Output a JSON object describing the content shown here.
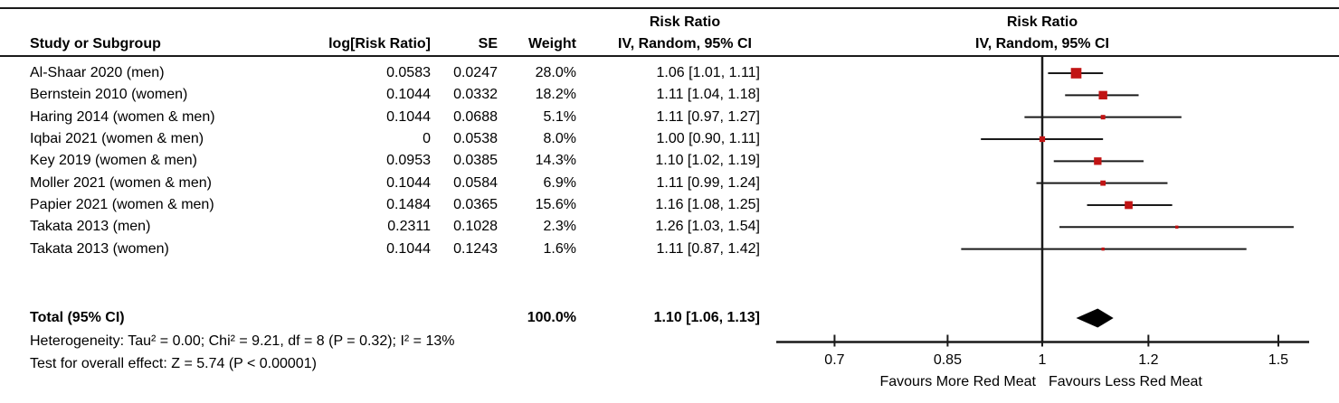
{
  "header": {
    "study_col": "Study or Subgroup",
    "log_rr_col": "log[Risk Ratio]",
    "se_col": "SE",
    "weight_col": "Weight",
    "left_measure_title": "Risk Ratio",
    "left_model_subtitle": "IV, Random, 95% CI",
    "right_measure_title": "Risk Ratio",
    "right_model_subtitle": "IV, Random, 95% CI"
  },
  "total_row": {
    "label": "Total (95% CI)",
    "weight": "100.0%",
    "ci_text": "1.10 [1.06, 1.13]"
  },
  "footnotes": {
    "heterogeneity": "Heterogeneity: Tau² = 0.00; Chi² = 9.21, df = 8 (P = 0.32); I² = 13%",
    "overall_effect": "Test for overall effect: Z = 5.74 (P < 0.00001)"
  },
  "colors": {
    "marker_red": "#c11414",
    "diamond_black": "#000000",
    "line": "#1a1a1a"
  },
  "chart_data": {
    "type": "forest",
    "effect_measure": "Risk Ratio",
    "model": "IV, Random, 95% CI",
    "x_scale": "log",
    "null_line": 1,
    "x_ticks": [
      "0.7",
      "0.85",
      "1",
      "1.2",
      "1.5"
    ],
    "x_tick_values": [
      0.7,
      0.85,
      1,
      1.2,
      1.5
    ],
    "favours_left": "Favours More Red Meat",
    "favours_right": "Favours Less Red Meat",
    "studies": [
      {
        "label": "Al-Shaar 2020 (men)",
        "log_rr": "0.0583",
        "se": "0.0247",
        "weight": "28.0%",
        "weight_pct": 28.0,
        "ci_text": "1.06 [1.01, 1.11]",
        "rr": 1.06,
        "ci_low": 1.01,
        "ci_high": 1.11
      },
      {
        "label": "Bernstein 2010 (women)",
        "log_rr": "0.1044",
        "se": "0.0332",
        "weight": "18.2%",
        "weight_pct": 18.2,
        "ci_text": "1.11 [1.04, 1.18]",
        "rr": 1.11,
        "ci_low": 1.04,
        "ci_high": 1.18
      },
      {
        "label": "Haring 2014 (women & men)",
        "log_rr": "0.1044",
        "se": "0.0688",
        "weight": "5.1%",
        "weight_pct": 5.1,
        "ci_text": "1.11 [0.97, 1.27]",
        "rr": 1.11,
        "ci_low": 0.97,
        "ci_high": 1.27
      },
      {
        "label": "Iqbai 2021 (women & men)",
        "log_rr": "0",
        "se": "0.0538",
        "weight": "8.0%",
        "weight_pct": 8.0,
        "ci_text": "1.00 [0.90, 1.11]",
        "rr": 1.0,
        "ci_low": 0.9,
        "ci_high": 1.11
      },
      {
        "label": "Key 2019 (women & men)",
        "log_rr": "0.0953",
        "se": "0.0385",
        "weight": "14.3%",
        "weight_pct": 14.3,
        "ci_text": "1.10 [1.02, 1.19]",
        "rr": 1.1,
        "ci_low": 1.02,
        "ci_high": 1.19
      },
      {
        "label": "Moller 2021 (women & men)",
        "log_rr": "0.1044",
        "se": "0.0584",
        "weight": "6.9%",
        "weight_pct": 6.9,
        "ci_text": "1.11 [0.99, 1.24]",
        "rr": 1.11,
        "ci_low": 0.99,
        "ci_high": 1.24
      },
      {
        "label": "Papier 2021 (women & men)",
        "log_rr": "0.1484",
        "se": "0.0365",
        "weight": "15.6%",
        "weight_pct": 15.6,
        "ci_text": "1.16 [1.08, 1.25]",
        "rr": 1.16,
        "ci_low": 1.08,
        "ci_high": 1.25
      },
      {
        "label": "Takata 2013 (men)",
        "log_rr": "0.2311",
        "se": "0.1028",
        "weight": "2.3%",
        "weight_pct": 2.3,
        "ci_text": "1.26 [1.03, 1.54]",
        "rr": 1.26,
        "ci_low": 1.03,
        "ci_high": 1.54
      },
      {
        "label": "Takata 2013 (women)",
        "log_rr": "0.1044",
        "se": "0.1243",
        "weight": "1.6%",
        "weight_pct": 1.6,
        "ci_text": "1.11 [0.87, 1.42]",
        "rr": 1.11,
        "ci_low": 0.87,
        "ci_high": 1.42
      }
    ],
    "total": {
      "label": "Total (95% CI)",
      "weight_pct": 100.0,
      "rr": 1.1,
      "ci_low": 1.06,
      "ci_high": 1.13
    }
  }
}
